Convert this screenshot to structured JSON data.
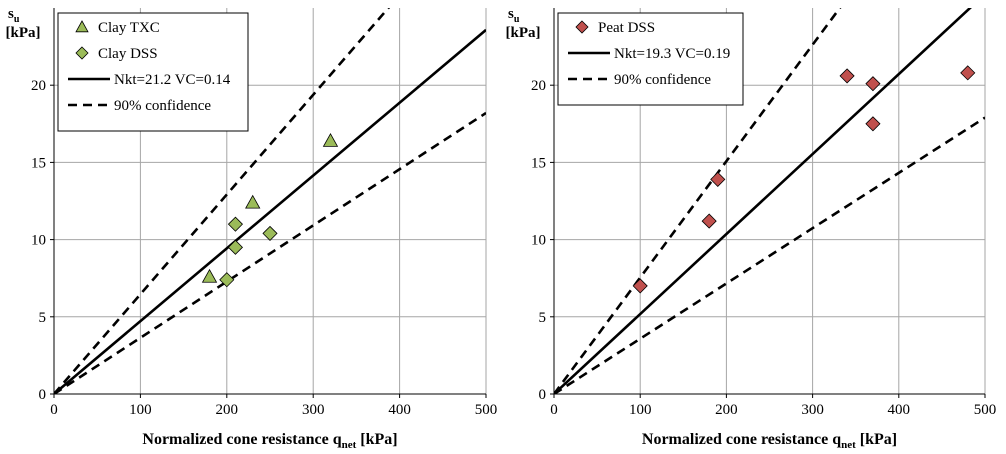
{
  "chart_data": [
    {
      "type": "scatter",
      "xlabel": {
        "main": "Normalized cone resistance q",
        "sub": "net",
        "unit": " [kPa]"
      },
      "ylabel": {
        "main": "s",
        "sub": "u",
        "unit": "[kPa]"
      },
      "xlim": [
        0,
        500
      ],
      "ylim": [
        0,
        25
      ],
      "xticks": [
        0,
        100,
        200,
        300,
        400,
        500
      ],
      "yticks": [
        0,
        5,
        10,
        15,
        20
      ],
      "grid": true,
      "legend_position": "top-left",
      "series": [
        {
          "name": "Clay TXC",
          "kind": "points",
          "marker": "triangle",
          "color": "#9bbb59",
          "points": [
            [
              180,
              7.6
            ],
            [
              230,
              12.4
            ],
            [
              320,
              16.4
            ]
          ]
        },
        {
          "name": "Clay DSS",
          "kind": "points",
          "marker": "diamond",
          "color": "#9bbb59",
          "points": [
            [
              200,
              7.4
            ],
            [
              210,
              9.5
            ],
            [
              210,
              11.0
            ],
            [
              250,
              10.4
            ]
          ]
        },
        {
          "name": "Nkt=21.2 VC=0.14",
          "kind": "line",
          "style": "solid",
          "color": "#000000",
          "line": [
            [
              0,
              0
            ],
            [
              500,
              23.58
            ]
          ]
        },
        {
          "name": "90% confidence",
          "kind": "line",
          "style": "dashed",
          "color": "#000000",
          "line": [
            [
              0,
              0
            ],
            [
              500,
              32.3
            ]
          ]
        },
        {
          "name": "",
          "kind": "line",
          "style": "dashed",
          "color": "#000000",
          "line": [
            [
              0,
              0
            ],
            [
              500,
              18.2
            ]
          ]
        }
      ]
    },
    {
      "type": "scatter",
      "xlabel": {
        "main": "Normalized cone resistance q",
        "sub": "net",
        "unit": " [kPa]"
      },
      "ylabel": {
        "main": "s",
        "sub": "u",
        "unit": "[kPa]"
      },
      "xlim": [
        0,
        500
      ],
      "ylim": [
        0,
        25
      ],
      "xticks": [
        0,
        100,
        200,
        300,
        400,
        500
      ],
      "yticks": [
        0,
        5,
        10,
        15,
        20
      ],
      "grid": true,
      "legend_position": "top-left",
      "series": [
        {
          "name": "Peat DSS",
          "kind": "points",
          "marker": "diamond",
          "color": "#c0504d",
          "points": [
            [
              100,
              7.0
            ],
            [
              180,
              11.2
            ],
            [
              190,
              13.9
            ],
            [
              340,
              20.6
            ],
            [
              370,
              20.1
            ],
            [
              370,
              17.5
            ],
            [
              480,
              20.8
            ]
          ]
        },
        {
          "name": "Nkt=19.3 VC=0.19",
          "kind": "line",
          "style": "solid",
          "color": "#000000",
          "line": [
            [
              0,
              0
            ],
            [
              500,
              25.9
            ]
          ]
        },
        {
          "name": "90% confidence",
          "kind": "line",
          "style": "dashed",
          "color": "#000000",
          "line": [
            [
              0,
              0
            ],
            [
              500,
              37.7
            ]
          ]
        },
        {
          "name": "",
          "kind": "line",
          "style": "dashed",
          "color": "#000000",
          "line": [
            [
              0,
              0
            ],
            [
              500,
              17.9
            ]
          ]
        }
      ]
    }
  ]
}
